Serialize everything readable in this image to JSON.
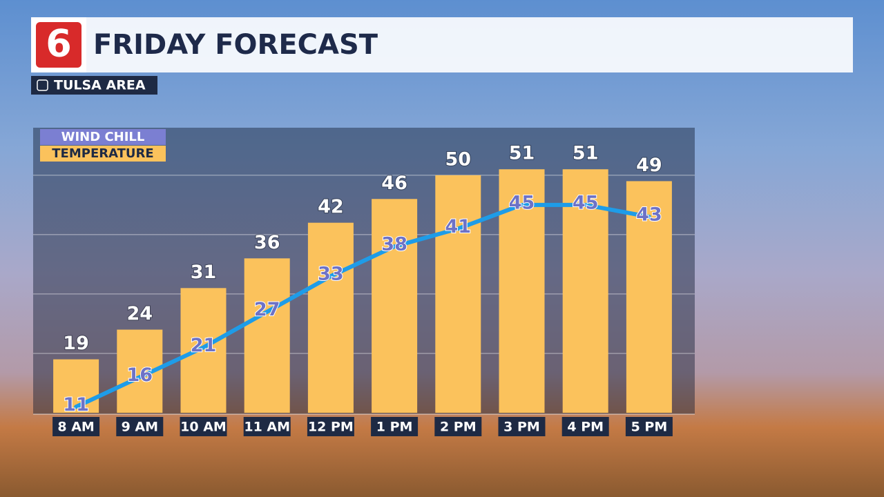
{
  "header": {
    "logo": "6",
    "title": "FRIDAY FORECAST",
    "location": "TULSA AREA"
  },
  "chart_data": {
    "type": "bar-line",
    "categories": [
      "8 AM",
      "9 AM",
      "10 AM",
      "11 AM",
      "12 PM",
      "1 PM",
      "2 PM",
      "3 PM",
      "4 PM",
      "5 PM"
    ],
    "series": [
      {
        "name": "TEMPERATURE",
        "type": "bar",
        "color": "#fbc25c",
        "label_color": "#ffffff",
        "values": [
          19,
          24,
          31,
          36,
          42,
          46,
          50,
          51,
          51,
          49
        ]
      },
      {
        "name": "WIND CHILL",
        "type": "line",
        "color": "#1e9ce8",
        "label_color": "#6d72c6",
        "legend_color": "#7b7fd2",
        "values": [
          11,
          16,
          21,
          27,
          33,
          38,
          41,
          45,
          45,
          43
        ]
      }
    ],
    "ylim": [
      10,
      58
    ],
    "yticks": [
      20,
      30,
      40,
      50
    ],
    "grid": true
  }
}
